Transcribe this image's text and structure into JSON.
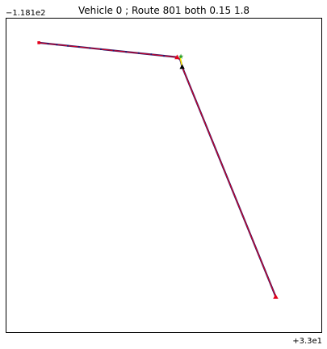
{
  "chart_data": {
    "type": "line",
    "title": "Vehicle 0 ; Route 801 both 0.15 1.8",
    "xlabel": "",
    "ylabel": "",
    "x_offset_label": "+3.3e1",
    "y_offset_label": "−1.181e2",
    "xlim": [
      0,
      100
    ],
    "ylim": [
      0,
      100
    ],
    "grid": false,
    "ticks_visible": false,
    "route": {
      "color": "#e3001b",
      "underlay_color": "#2b1a6e",
      "points": [
        {
          "x": 10.3,
          "y": 92.3
        },
        {
          "x": 54.2,
          "y": 87.7
        },
        {
          "x": 55.2,
          "y": 86.9
        },
        {
          "x": 55.8,
          "y": 84.6
        },
        {
          "x": 85.5,
          "y": 11.3
        }
      ],
      "dots": [
        {
          "x": 10.3,
          "y": 92.3
        },
        {
          "x": 13.2,
          "y": 92.0
        },
        {
          "x": 16.0,
          "y": 91.7
        },
        {
          "x": 19.5,
          "y": 91.3
        },
        {
          "x": 23.0,
          "y": 91.0
        },
        {
          "x": 26.5,
          "y": 90.6
        },
        {
          "x": 30.0,
          "y": 90.2
        },
        {
          "x": 34.0,
          "y": 89.8
        },
        {
          "x": 38.0,
          "y": 89.4
        },
        {
          "x": 42.0,
          "y": 89.0
        },
        {
          "x": 46.0,
          "y": 88.6
        },
        {
          "x": 50.0,
          "y": 88.1
        }
      ]
    },
    "markers": [
      {
        "shape": "triangle",
        "color": "#e3001b",
        "x": 54.2,
        "y": 87.7
      },
      {
        "shape": "triangle",
        "color": "#000000",
        "x": 55.8,
        "y": 84.6
      },
      {
        "shape": "triangle",
        "color": "#e3001b",
        "x": 85.5,
        "y": 11.3
      },
      {
        "shape": "square",
        "color": "#e3001b",
        "x": 10.3,
        "y": 92.3
      },
      {
        "shape": "star",
        "color": "#2ca02c",
        "x": 55.4,
        "y": 87.9
      }
    ],
    "connector": {
      "color": "#f2e600",
      "from": {
        "x": 55.2,
        "y": 87.5
      },
      "to": {
        "x": 55.7,
        "y": 85.0
      }
    }
  }
}
